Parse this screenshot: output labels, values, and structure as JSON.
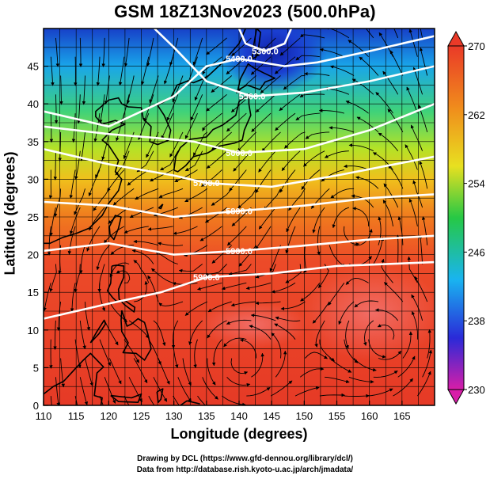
{
  "title": "GSM 18Z13Nov2023 (500.0hPa)",
  "x_axis": {
    "label": "Longitude (degrees)",
    "range": [
      110,
      170
    ],
    "ticks": [
      110,
      115,
      120,
      125,
      130,
      135,
      140,
      145,
      150,
      155,
      160,
      165
    ]
  },
  "y_axis": {
    "label": "Latitude  (degrees)",
    "range": [
      0,
      50
    ],
    "ticks": [
      0,
      5,
      10,
      15,
      20,
      25,
      30,
      35,
      40,
      45
    ]
  },
  "colorbar": {
    "range": [
      230,
      270
    ],
    "ticks": [
      270,
      262,
      254,
      246,
      238,
      230
    ],
    "colors": [
      "#d81ea8",
      "#2a2ad8",
      "#19b4f0",
      "#26c845",
      "#e8e020",
      "#f08c1c",
      "#ea3a28"
    ]
  },
  "contours": [
    {
      "label": "5300.0",
      "points": [
        [
          140,
          50
        ],
        [
          141,
          48
        ],
        [
          144,
          47
        ],
        [
          147,
          48
        ],
        [
          148,
          50
        ]
      ]
    },
    {
      "label": "5400.0",
      "points": [
        [
          110,
          39
        ],
        [
          120,
          37
        ],
        [
          130,
          41
        ],
        [
          135,
          45
        ],
        [
          140,
          46
        ],
        [
          147,
          45
        ],
        [
          152,
          45.5
        ],
        [
          160,
          47
        ],
        [
          170,
          49
        ]
      ]
    },
    {
      "label": "5500.0",
      "points": [
        [
          127,
          50
        ],
        [
          130,
          47.5
        ],
        [
          135,
          43
        ],
        [
          142,
          41
        ],
        [
          150,
          41.5
        ],
        [
          160,
          43
        ],
        [
          170,
          45
        ]
      ]
    },
    {
      "label": "5600.0",
      "points": [
        [
          110,
          37
        ],
        [
          120,
          36
        ],
        [
          127,
          35.5
        ],
        [
          133,
          35
        ],
        [
          140,
          33.5
        ],
        [
          150,
          34
        ],
        [
          160,
          36.5
        ],
        [
          170,
          40
        ]
      ]
    },
    {
      "label": "5700.0",
      "points": [
        [
          110,
          34
        ],
        [
          120,
          32
        ],
        [
          130,
          30.5
        ],
        [
          135,
          29.5
        ],
        [
          145,
          29
        ],
        [
          155,
          30.5
        ],
        [
          170,
          33
        ]
      ]
    },
    {
      "label": "5800.0",
      "points": [
        [
          110,
          27
        ],
        [
          120,
          26.5
        ],
        [
          130,
          25
        ],
        [
          140,
          25.8
        ],
        [
          150,
          26.5
        ],
        [
          160,
          27.5
        ],
        [
          170,
          28
        ]
      ]
    },
    {
      "label": "5900.0",
      "points": [
        [
          110,
          20.5
        ],
        [
          120,
          21.5
        ],
        [
          130,
          20
        ],
        [
          140,
          20.5
        ],
        [
          150,
          21.2
        ],
        [
          160,
          22
        ],
        [
          170,
          22.5
        ]
      ]
    },
    {
      "label": "5900.0",
      "points": [
        [
          110,
          11.5
        ],
        [
          120,
          13.5
        ],
        [
          128,
          15
        ],
        [
          135,
          17
        ],
        [
          145,
          17.5
        ],
        [
          155,
          18.5
        ],
        [
          170,
          19
        ]
      ]
    }
  ],
  "credits": {
    "line1": "Drawing by DCL (https://www.gfd-dennou.org/library/dcl/)",
    "line2": "Data from http://database.rish.kyoto-u.ac.jp/arch/jmadata/"
  }
}
